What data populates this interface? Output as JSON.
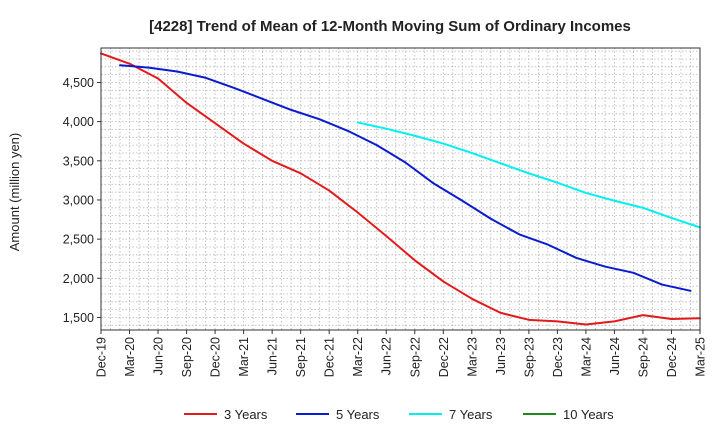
{
  "chart_data": {
    "type": "line",
    "title": "[4228]  Trend of Mean of 12-Month Moving Sum of Ordinary Incomes",
    "xlabel": "",
    "ylabel": "Amount (million yen)",
    "grid": true,
    "legend_position": "bottom",
    "x_ticks": [
      "Dec-19",
      "Mar-20",
      "Jun-20",
      "Sep-20",
      "Dec-20",
      "Mar-21",
      "Jun-21",
      "Sep-21",
      "Dec-21",
      "Mar-22",
      "Jun-22",
      "Sep-22",
      "Dec-22",
      "Mar-23",
      "Jun-23",
      "Sep-23",
      "Dec-23",
      "Mar-24",
      "Jun-24",
      "Sep-24",
      "Dec-24",
      "Mar-25"
    ],
    "x_range": [
      0,
      63
    ],
    "y_ticks": [
      1500,
      2000,
      2500,
      3000,
      3500,
      4000,
      4500
    ],
    "y_tick_labels": [
      "1,500",
      "2,000",
      "2,500",
      "3,000",
      "3,500",
      "4,000",
      "4,500"
    ],
    "ylim": [
      1340,
      4940
    ],
    "series": [
      {
        "name": "3 Years",
        "color": "#e31a1c",
        "points": [
          [
            0,
            4870
          ],
          [
            3,
            4740
          ],
          [
            6,
            4550
          ],
          [
            9,
            4240
          ],
          [
            12,
            3980
          ],
          [
            15,
            3720
          ],
          [
            18,
            3500
          ],
          [
            21,
            3340
          ],
          [
            24,
            3120
          ],
          [
            27,
            2840
          ],
          [
            30,
            2540
          ],
          [
            33,
            2230
          ],
          [
            36,
            1960
          ],
          [
            39,
            1740
          ],
          [
            42,
            1560
          ],
          [
            45,
            1470
          ],
          [
            48,
            1450
          ],
          [
            51,
            1410
          ],
          [
            54,
            1450
          ],
          [
            57,
            1530
          ],
          [
            60,
            1480
          ],
          [
            63,
            1490
          ]
        ]
      },
      {
        "name": "5 Years",
        "color": "#0a1ccf",
        "points": [
          [
            2,
            4720
          ],
          [
            5,
            4690
          ],
          [
            8,
            4640
          ],
          [
            11,
            4560
          ],
          [
            14,
            4430
          ],
          [
            17,
            4290
          ],
          [
            20,
            4150
          ],
          [
            23,
            4030
          ],
          [
            26,
            3880
          ],
          [
            29,
            3700
          ],
          [
            32,
            3480
          ],
          [
            35,
            3210
          ],
          [
            38,
            2990
          ],
          [
            41,
            2760
          ],
          [
            44,
            2560
          ],
          [
            47,
            2430
          ],
          [
            50,
            2260
          ],
          [
            53,
            2150
          ],
          [
            56,
            2070
          ],
          [
            59,
            1920
          ],
          [
            62,
            1840
          ]
        ]
      },
      {
        "name": "7 Years",
        "color": "#00f0f0",
        "points": [
          [
            27,
            3990
          ],
          [
            30,
            3910
          ],
          [
            33,
            3820
          ],
          [
            36,
            3720
          ],
          [
            39,
            3600
          ],
          [
            42,
            3470
          ],
          [
            45,
            3340
          ],
          [
            48,
            3220
          ],
          [
            51,
            3090
          ],
          [
            54,
            2990
          ],
          [
            57,
            2900
          ],
          [
            60,
            2770
          ],
          [
            63,
            2650
          ]
        ]
      },
      {
        "name": "10 Years",
        "color": "#1e8a1e",
        "points": []
      }
    ]
  }
}
